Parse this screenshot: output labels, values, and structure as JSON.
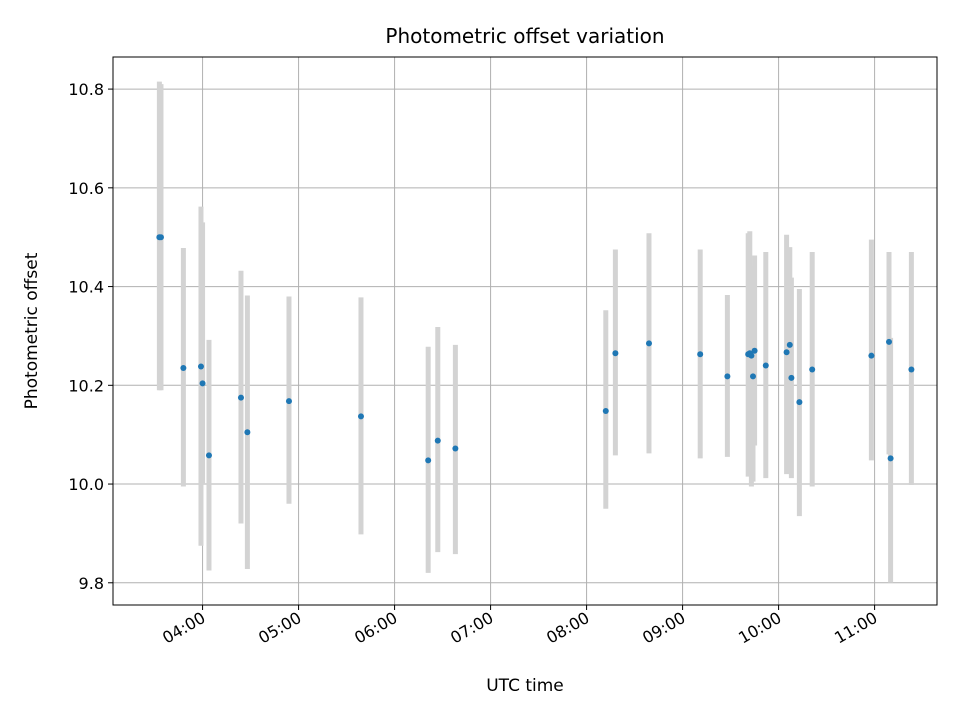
{
  "chart_data": {
    "type": "scatter",
    "title": "Photometric offset variation",
    "xlabel": "UTC time",
    "ylabel": "Photometric offset",
    "x_tick_labels": [
      "04:00",
      "05:00",
      "06:00",
      "07:00",
      "08:00",
      "09:00",
      "10:00",
      "11:00"
    ],
    "y_tick_labels": [
      "9.8",
      "10.0",
      "10.2",
      "10.4",
      "10.6",
      "10.8"
    ],
    "y_ticks": [
      9.8,
      10.0,
      10.2,
      10.4,
      10.6,
      10.8
    ],
    "xlim_hours": [
      3.067,
      11.65
    ],
    "ylim": [
      9.755,
      10.865
    ],
    "grid": true,
    "colors": {
      "point": "#1f77b4",
      "errorbar": "#d3d3d3",
      "grid": "#b0b0b0"
    },
    "series": [
      {
        "x": [
          "03:33",
          "03:34",
          "03:48",
          "03:59",
          "04:00",
          "04:04",
          "04:24",
          "04:28",
          "04:54",
          "05:39",
          "06:21",
          "06:27",
          "06:38",
          "08:12",
          "08:18",
          "08:39",
          "09:11",
          "09:28",
          "09:41",
          "09:42",
          "09:43",
          "09:44",
          "09:45",
          "09:52",
          "10:05",
          "10:07",
          "10:08",
          "10:13",
          "10:21",
          "10:58",
          "11:09",
          "11:10",
          "11:23"
        ],
        "y": [
          10.5,
          10.5,
          10.235,
          10.238,
          10.204,
          10.058,
          10.175,
          10.105,
          10.168,
          10.137,
          10.048,
          10.088,
          10.072,
          10.148,
          10.265,
          10.285,
          10.263,
          10.218,
          10.263,
          10.265,
          10.26,
          10.218,
          10.27,
          10.24,
          10.267,
          10.282,
          10.215,
          10.166,
          10.232,
          10.26,
          10.288,
          10.052,
          10.232
        ],
        "err_low": [
          10.19,
          10.19,
          9.995,
          9.875,
          10.0,
          9.825,
          9.92,
          9.828,
          9.96,
          9.898,
          9.82,
          9.862,
          9.858,
          9.95,
          10.058,
          10.062,
          10.052,
          10.055,
          10.015,
          10.02,
          9.995,
          10.005,
          10.078,
          10.012,
          10.02,
          10.055,
          10.012,
          9.935,
          9.995,
          10.048,
          10.06,
          9.8,
          9.998
        ],
        "err_high": [
          10.815,
          10.81,
          10.478,
          10.562,
          10.53,
          10.292,
          10.432,
          10.382,
          10.38,
          10.378,
          10.278,
          10.318,
          10.282,
          10.352,
          10.475,
          10.508,
          10.475,
          10.383,
          10.508,
          10.512,
          10.442,
          10.43,
          10.463,
          10.47,
          10.505,
          10.48,
          10.418,
          10.395,
          10.47,
          10.495,
          10.47,
          10.296,
          10.47
        ]
      }
    ]
  }
}
